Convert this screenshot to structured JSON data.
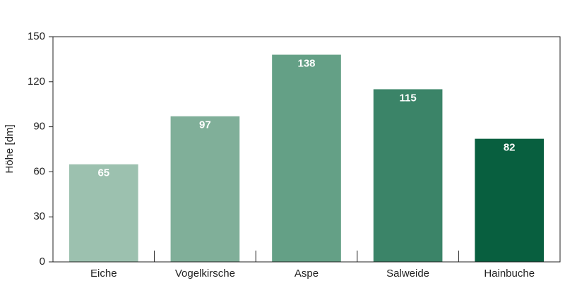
{
  "chart_data": {
    "type": "bar",
    "y_label": "Höhe [dm]",
    "categories": [
      "Eiche",
      "Vogelkirsche",
      "Aspe",
      "Salweide",
      "Hainbuche"
    ],
    "values": [
      65,
      97,
      138,
      115,
      82
    ],
    "colors": [
      "#9cc1af",
      "#80af99",
      "#64a086",
      "#3b8468",
      "#085f3f"
    ],
    "ylim": [
      0,
      150
    ],
    "yticks": [
      0,
      30,
      60,
      90,
      120,
      150
    ],
    "grid": false
  }
}
